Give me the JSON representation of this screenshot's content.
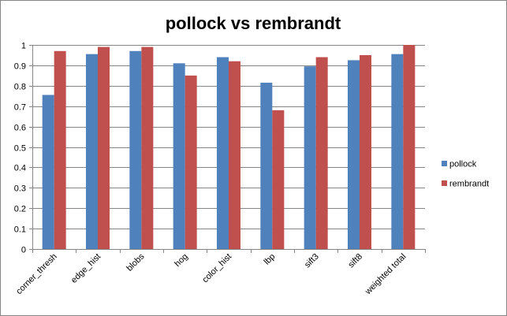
{
  "chart_data": {
    "type": "bar",
    "title": "pollock vs rembrandt",
    "xlabel": "",
    "ylabel": "",
    "ylim": [
      0,
      1
    ],
    "ytick_step": 0.1,
    "ytick_labels": [
      "0",
      "0.1",
      "0.2",
      "0.3",
      "0.4",
      "0.5",
      "0.6",
      "0.7",
      "0.8",
      "0.9",
      "1"
    ],
    "grid": true,
    "legend_position": "right",
    "categories": [
      "corner_thresh",
      "edge_hist",
      "blobs",
      "hog",
      "color_hist",
      "lbp",
      "sift3",
      "sift8",
      "weighted total"
    ],
    "series": [
      {
        "name": "pollock",
        "color": "#4F81BD",
        "values": [
          0.755,
          0.955,
          0.97,
          0.91,
          0.94,
          0.815,
          0.895,
          0.925,
          0.955
        ]
      },
      {
        "name": "rembrandt",
        "color": "#C0504D",
        "values": [
          0.97,
          0.99,
          0.99,
          0.85,
          0.92,
          0.68,
          0.94,
          0.95,
          1.0
        ]
      }
    ]
  }
}
